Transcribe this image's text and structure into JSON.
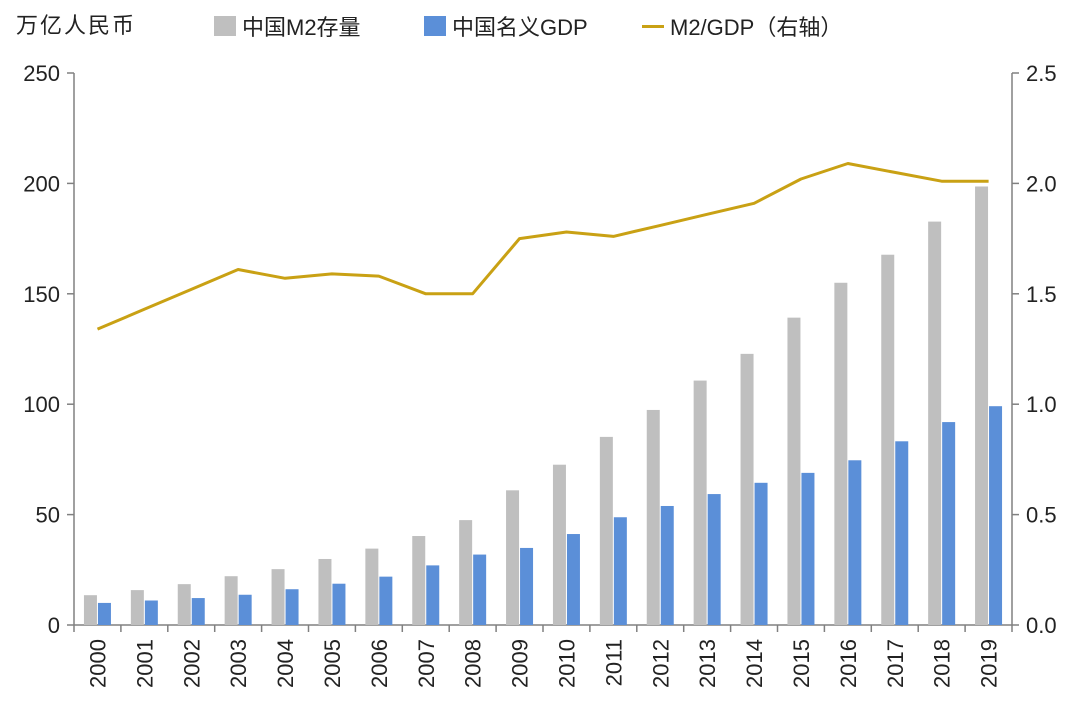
{
  "unit_label": "万亿人民币",
  "legend": {
    "m2": "中国M2存量",
    "gdp": "中国名义GDP",
    "ratio": "M2/GDP（右轴）"
  },
  "colors": {
    "m2": "#BFBFBF",
    "gdp": "#5B8FD8",
    "ratio": "#C9A114",
    "axis": "#808080",
    "text": "#222222"
  },
  "chart_data": {
    "type": "bar",
    "title": "",
    "categories": [
      "2000",
      "2001",
      "2002",
      "2003",
      "2004",
      "2005",
      "2006",
      "2007",
      "2008",
      "2009",
      "2010",
      "2011",
      "2012",
      "2013",
      "2014",
      "2015",
      "2016",
      "2017",
      "2018",
      "2019"
    ],
    "series": [
      {
        "name": "中国M2存量",
        "type": "bar",
        "axis": "left",
        "values": [
          13.5,
          15.8,
          18.5,
          22.1,
          25.3,
          29.9,
          34.6,
          40.3,
          47.5,
          61.0,
          72.6,
          85.2,
          97.4,
          110.7,
          122.8,
          139.2,
          155.0,
          167.7,
          182.7,
          198.6
        ]
      },
      {
        "name": "中国名义GDP",
        "type": "bar",
        "axis": "left",
        "values": [
          10.0,
          11.1,
          12.2,
          13.7,
          16.2,
          18.7,
          21.9,
          27.0,
          31.9,
          34.9,
          41.2,
          48.8,
          53.9,
          59.3,
          64.4,
          68.9,
          74.6,
          83.2,
          91.9,
          99.1
        ]
      },
      {
        "name": "M2/GDP（右轴）",
        "type": "line",
        "axis": "right",
        "values": [
          1.34,
          1.43,
          1.52,
          1.61,
          1.57,
          1.59,
          1.58,
          1.5,
          1.5,
          1.75,
          1.78,
          1.76,
          1.81,
          1.86,
          1.91,
          2.02,
          2.09,
          2.05,
          2.01,
          2.01
        ]
      }
    ],
    "y_left": {
      "min": 0,
      "max": 250,
      "ticks": [
        0,
        50,
        100,
        150,
        200,
        250
      ],
      "tick_labels": [
        "0",
        "50",
        "100",
        "150",
        "200",
        "250"
      ]
    },
    "y_right": {
      "min": 0,
      "max": 2.5,
      "ticks": [
        0,
        0.5,
        1.0,
        1.5,
        2.0,
        2.5
      ],
      "tick_labels": [
        "0.0",
        "0.5",
        "1.0",
        "1.5",
        "2.0",
        "2.5"
      ]
    },
    "xlabel": "",
    "ylabel": "万亿人民币",
    "grid": false,
    "legend_position": "top"
  }
}
